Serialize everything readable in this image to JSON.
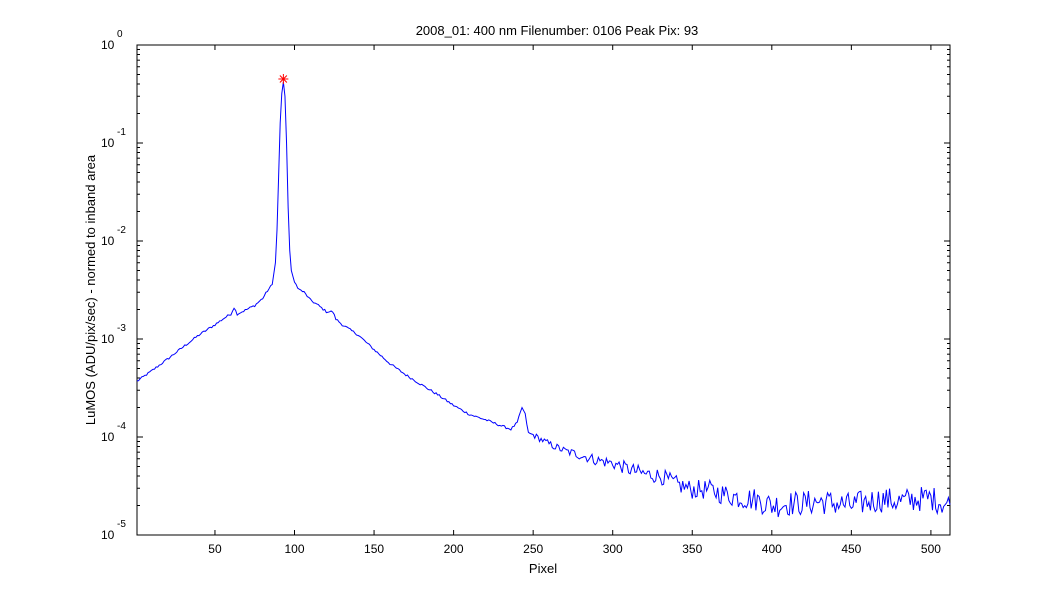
{
  "chart_data": {
    "type": "line",
    "title": "2008_01: 400 nm  Filenumber: 0106 Peak Pix: 93",
    "xlabel": "Pixel",
    "ylabel": "LuMOS (ADU/pix/sec) - normed to inband area",
    "xlim": [
      1,
      512
    ],
    "ylim": [
      1e-05,
      1
    ],
    "yscale": "log",
    "grid": false,
    "x_ticks": [
      50,
      100,
      150,
      200,
      250,
      300,
      350,
      400,
      450,
      500
    ],
    "y_ticks": [
      {
        "base": "10",
        "exp": "0"
      },
      {
        "base": "10",
        "exp": "-1"
      },
      {
        "base": "10",
        "exp": "-2"
      },
      {
        "base": "10",
        "exp": "-3"
      },
      {
        "base": "10",
        "exp": "-4"
      },
      {
        "base": "10",
        "exp": "-5"
      }
    ],
    "series": [
      {
        "color": "#0000ff",
        "points": [
          [
            1,
            0.00037
          ],
          [
            10,
            0.00047
          ],
          [
            20,
            0.00062
          ],
          [
            30,
            0.00083
          ],
          [
            40,
            0.0011
          ],
          [
            50,
            0.0014
          ],
          [
            55,
            0.0016
          ],
          [
            60,
            0.0018
          ],
          [
            62,
            0.0021
          ],
          [
            64,
            0.0018
          ],
          [
            70,
            0.002
          ],
          [
            75,
            0.0022
          ],
          [
            80,
            0.0026
          ],
          [
            83,
            0.0031
          ],
          [
            86,
            0.0036
          ],
          [
            88,
            0.006
          ],
          [
            89,
            0.013
          ],
          [
            90,
            0.045
          ],
          [
            91,
            0.16
          ],
          [
            92,
            0.32
          ],
          [
            93,
            0.42
          ],
          [
            94,
            0.3
          ],
          [
            95,
            0.1
          ],
          [
            96,
            0.022
          ],
          [
            97,
            0.008
          ],
          [
            98,
            0.005
          ],
          [
            100,
            0.0038
          ],
          [
            103,
            0.0032
          ],
          [
            106,
            0.003
          ],
          [
            110,
            0.0025
          ],
          [
            115,
            0.0022
          ],
          [
            120,
            0.0019
          ],
          [
            124,
            0.0019
          ],
          [
            126,
            0.0016
          ],
          [
            130,
            0.0014
          ],
          [
            140,
            0.0011
          ],
          [
            150,
            0.00078
          ],
          [
            160,
            0.00056
          ],
          [
            170,
            0.00043
          ],
          [
            180,
            0.00034
          ],
          [
            190,
            0.00027
          ],
          [
            200,
            0.00021
          ],
          [
            210,
            0.00017
          ],
          [
            220,
            0.00015
          ],
          [
            230,
            0.00013
          ],
          [
            236,
            0.00012
          ],
          [
            240,
            0.00014
          ],
          [
            243,
            0.0002
          ],
          [
            245,
            0.00017
          ],
          [
            247,
            0.00011
          ],
          [
            250,
            0.000105
          ],
          [
            260,
            8.5e-05
          ],
          [
            270,
            7.2e-05
          ],
          [
            280,
            6.5e-05
          ],
          [
            290,
            5.8e-05
          ],
          [
            300,
            5.4e-05
          ],
          [
            310,
            4.7e-05
          ],
          [
            320,
            4.2e-05
          ],
          [
            330,
            4e-05
          ],
          [
            340,
            3.3e-05
          ],
          [
            350,
            2.9e-05
          ],
          [
            360,
            2.9e-05
          ],
          [
            370,
            2.6e-05
          ],
          [
            380,
            2.4e-05
          ],
          [
            390,
            2.3e-05
          ],
          [
            400,
            2e-05
          ],
          [
            410,
            2.1e-05
          ],
          [
            420,
            2.1e-05
          ],
          [
            430,
            2.2e-05
          ],
          [
            440,
            2.1e-05
          ],
          [
            450,
            2e-05
          ],
          [
            460,
            2.2e-05
          ],
          [
            470,
            2.3e-05
          ],
          [
            480,
            2.2e-05
          ],
          [
            490,
            2.3e-05
          ],
          [
            500,
            2.4e-05
          ],
          [
            505,
            2.2e-05
          ],
          [
            512,
            2e-05
          ]
        ],
        "noise_from_x": 250
      }
    ],
    "peak_marker": {
      "x": 93,
      "y": 0.45,
      "color": "#ff0000",
      "symbol": "*"
    }
  }
}
